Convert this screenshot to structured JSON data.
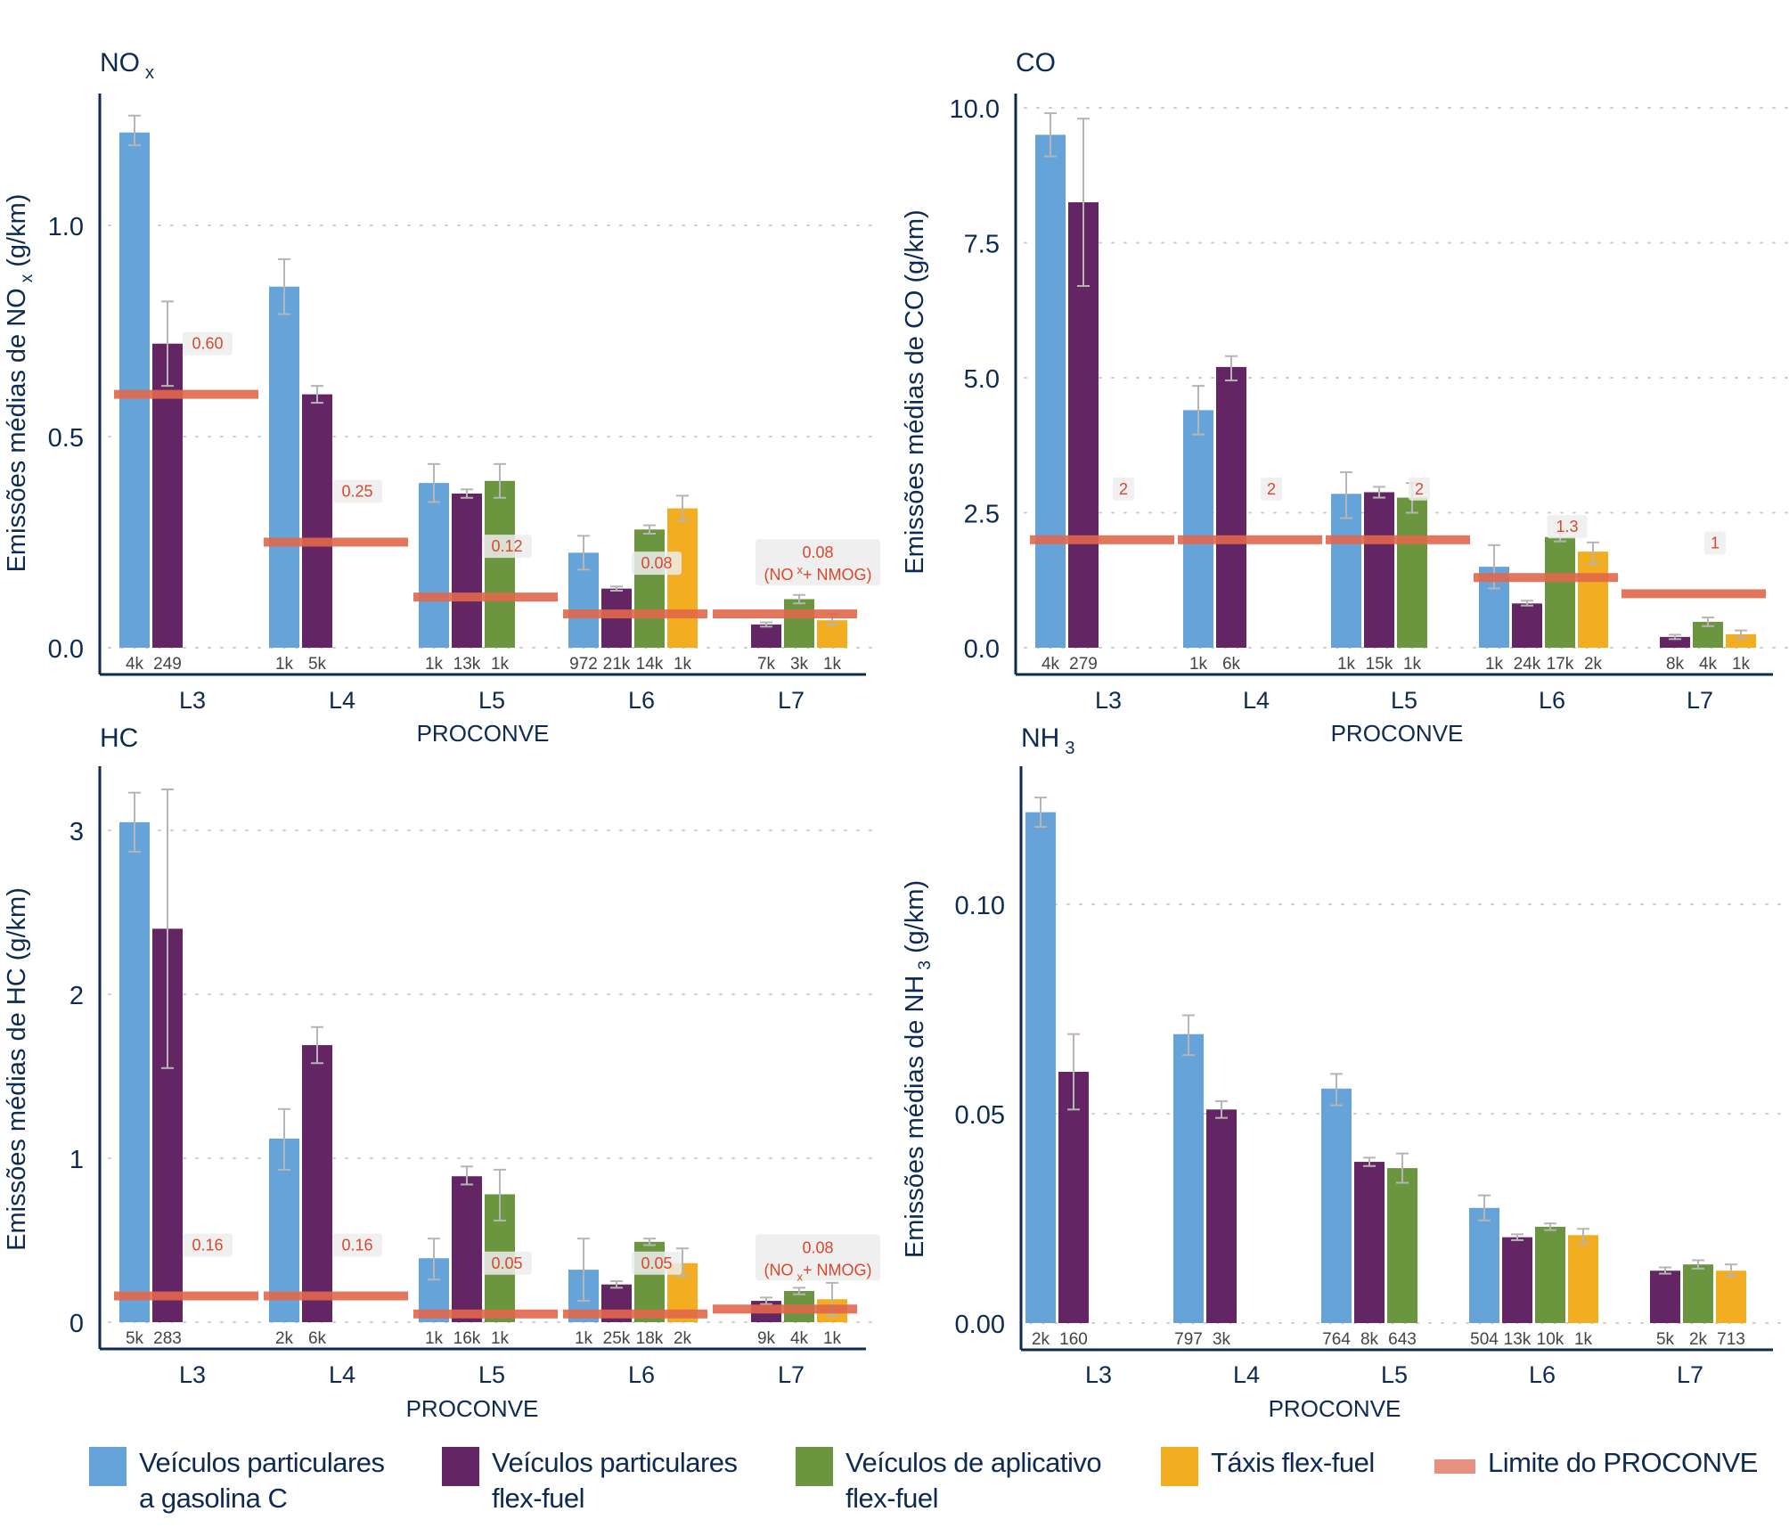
{
  "legend": {
    "items": [
      {
        "key": "gasolina",
        "label": "Veículos particulares\na gasolina C",
        "color": "#66a3d9"
      },
      {
        "key": "flex",
        "label": "Veículos particulares\nflex-fuel",
        "color": "#632563"
      },
      {
        "key": "app",
        "label": "Veículos de aplicativo\nflex-fuel",
        "color": "#6b953f"
      },
      {
        "key": "taxi",
        "label": "Táxis flex-fuel",
        "color": "#f2ae20"
      },
      {
        "key": "limit",
        "label": "Limite do PROCONVE",
        "color": "#e0674a",
        "type": "line"
      }
    ]
  },
  "colors": {
    "axis": "#0d2b52",
    "grid": "#cccccc",
    "error_bar": "#b5b5b5",
    "limit_line": "#e0674a",
    "limit_text": "#d9482b",
    "limit_box": "#ededed",
    "count_text": "#444444"
  },
  "chart_data": [
    {
      "id": "nox",
      "type": "bar",
      "title": "NO",
      "title_sub": "x",
      "ylabel": "Emissões médias de NO",
      "ylabel_sub": "x",
      "ylabel_suffix": " (g/km)",
      "xlabel": "PROCONVE",
      "show_xlabel": true,
      "categories": [
        "L3",
        "L4",
        "L5",
        "L6",
        "L7"
      ],
      "yticks": [
        0.0,
        0.5,
        1.0
      ],
      "ytick_labels": [
        "0.0",
        "0.5",
        "1.0"
      ],
      "ylim": [
        0,
        1.3
      ],
      "grid": true,
      "groups": [
        {
          "category": "L3",
          "bars": [
            {
              "series": "gasolina",
              "value": 1.22,
              "err_low": 1.19,
              "err_high": 1.26,
              "n": "4k"
            },
            {
              "series": "flex",
              "value": 0.72,
              "err_low": 0.62,
              "err_high": 0.82,
              "n": "249"
            }
          ],
          "limit": 0.6,
          "limit_label": "0.60"
        },
        {
          "category": "L4",
          "bars": [
            {
              "series": "gasolina",
              "value": 0.855,
              "err_low": 0.79,
              "err_high": 0.92,
              "n": "1k"
            },
            {
              "series": "flex",
              "value": 0.6,
              "err_low": 0.58,
              "err_high": 0.62,
              "n": "5k"
            }
          ],
          "limit": 0.25,
          "limit_label": "0.25"
        },
        {
          "category": "L5",
          "bars": [
            {
              "series": "gasolina",
              "value": 0.39,
              "err_low": 0.345,
              "err_high": 0.435,
              "n": "1k"
            },
            {
              "series": "flex",
              "value": 0.365,
              "err_low": 0.355,
              "err_high": 0.375,
              "n": "13k"
            },
            {
              "series": "app",
              "value": 0.395,
              "err_low": 0.355,
              "err_high": 0.435,
              "n": "1k"
            }
          ],
          "limit": 0.12,
          "limit_label": "0.12"
        },
        {
          "category": "L6",
          "bars": [
            {
              "series": "gasolina",
              "value": 0.225,
              "err_low": 0.185,
              "err_high": 0.265,
              "n": "972"
            },
            {
              "series": "flex",
              "value": 0.14,
              "err_low": 0.135,
              "err_high": 0.145,
              "n": "21k"
            },
            {
              "series": "app",
              "value": 0.28,
              "err_low": 0.27,
              "err_high": 0.29,
              "n": "14k"
            },
            {
              "series": "taxi",
              "value": 0.33,
              "err_low": 0.3,
              "err_high": 0.36,
              "n": "1k"
            }
          ],
          "limit": 0.08,
          "limit_label": "0.08"
        },
        {
          "category": "L7",
          "bars": [
            {
              "series": "flex",
              "value": 0.055,
              "err_low": 0.05,
              "err_high": 0.06,
              "n": "7k"
            },
            {
              "series": "app",
              "value": 0.115,
              "err_low": 0.105,
              "err_high": 0.125,
              "n": "3k"
            },
            {
              "series": "taxi",
              "value": 0.065,
              "err_low": 0.055,
              "err_high": 0.08,
              "n": "1k"
            }
          ],
          "limit": 0.08,
          "limit_label": "0.08",
          "limit_note": "(NO",
          "limit_note_sup": "x",
          "limit_note_rest": "+ NMOG)"
        }
      ]
    },
    {
      "id": "co",
      "type": "bar",
      "title": "CO",
      "title_sub": "",
      "ylabel": "Emissões médias de CO (g/km)",
      "ylabel_sub": "",
      "ylabel_suffix": "",
      "xlabel": "PROCONVE",
      "show_xlabel": true,
      "categories": [
        "L3",
        "L4",
        "L5",
        "L6",
        "L7"
      ],
      "yticks": [
        0.0,
        2.5,
        5.0,
        7.5,
        10.0
      ],
      "ytick_labels": [
        "0.0",
        "2.5",
        "5.0",
        "7.5",
        "10.0"
      ],
      "ylim": [
        0,
        10.5
      ],
      "grid": true,
      "groups": [
        {
          "category": "L3",
          "bars": [
            {
              "series": "gasolina",
              "value": 9.5,
              "err_low": 9.1,
              "err_high": 9.9,
              "n": "4k"
            },
            {
              "series": "flex",
              "value": 8.25,
              "err_low": 6.7,
              "err_high": 9.8,
              "n": "279"
            }
          ],
          "limit": 2,
          "limit_label": "2"
        },
        {
          "category": "L4",
          "bars": [
            {
              "series": "gasolina",
              "value": 4.4,
              "err_low": 3.95,
              "err_high": 4.85,
              "n": "1k"
            },
            {
              "series": "flex",
              "value": 5.2,
              "err_low": 4.95,
              "err_high": 5.4,
              "n": "6k"
            }
          ],
          "limit": 2,
          "limit_label": "2"
        },
        {
          "category": "L5",
          "bars": [
            {
              "series": "gasolina",
              "value": 2.85,
              "err_low": 2.4,
              "err_high": 3.25,
              "n": "1k"
            },
            {
              "series": "flex",
              "value": 2.88,
              "err_low": 2.78,
              "err_high": 2.98,
              "n": "15k"
            },
            {
              "series": "app",
              "value": 2.78,
              "err_low": 2.5,
              "err_high": 3.05,
              "n": "1k"
            }
          ],
          "limit": 2,
          "limit_label": "2"
        },
        {
          "category": "L6",
          "bars": [
            {
              "series": "gasolina",
              "value": 1.5,
              "err_low": 1.1,
              "err_high": 1.9,
              "n": "1k"
            },
            {
              "series": "flex",
              "value": 0.82,
              "err_low": 0.78,
              "err_high": 0.87,
              "n": "24k"
            },
            {
              "series": "app",
              "value": 2.05,
              "err_low": 1.97,
              "err_high": 2.13,
              "n": "17k"
            },
            {
              "series": "taxi",
              "value": 1.78,
              "err_low": 1.55,
              "err_high": 1.95,
              "n": "2k"
            }
          ],
          "limit": 1.3,
          "limit_label": "1.3"
        },
        {
          "category": "L7",
          "bars": [
            {
              "series": "flex",
              "value": 0.2,
              "err_low": 0.16,
              "err_high": 0.24,
              "n": "8k"
            },
            {
              "series": "app",
              "value": 0.48,
              "err_low": 0.4,
              "err_high": 0.56,
              "n": "4k"
            },
            {
              "series": "taxi",
              "value": 0.25,
              "err_low": 0.18,
              "err_high": 0.32,
              "n": "1k"
            }
          ],
          "limit": 1,
          "limit_label": "1"
        }
      ]
    },
    {
      "id": "hc",
      "type": "bar",
      "title": "HC",
      "title_sub": "",
      "ylabel": "Emissões médias de HC (g/km)",
      "ylabel_sub": "",
      "ylabel_suffix": "",
      "xlabel": "PROCONVE",
      "show_xlabel": true,
      "categories": [
        "L3",
        "L4",
        "L5",
        "L6",
        "L7"
      ],
      "yticks": [
        0,
        1,
        2,
        3
      ],
      "ytick_labels": [
        "0",
        "1",
        "2",
        "3"
      ],
      "ylim": [
        0,
        3.35
      ],
      "grid": true,
      "groups": [
        {
          "category": "L3",
          "bars": [
            {
              "series": "gasolina",
              "value": 3.05,
              "err_low": 2.87,
              "err_high": 3.23,
              "n": "5k"
            },
            {
              "series": "flex",
              "value": 2.4,
              "err_low": 1.55,
              "err_high": 3.25,
              "n": "283"
            }
          ],
          "limit": 0.16,
          "limit_label": "0.16"
        },
        {
          "category": "L4",
          "bars": [
            {
              "series": "gasolina",
              "value": 1.12,
              "err_low": 0.93,
              "err_high": 1.3,
              "n": "2k"
            },
            {
              "series": "flex",
              "value": 1.69,
              "err_low": 1.58,
              "err_high": 1.8,
              "n": "6k"
            }
          ],
          "limit": 0.16,
          "limit_label": "0.16"
        },
        {
          "category": "L5",
          "bars": [
            {
              "series": "gasolina",
              "value": 0.39,
              "err_low": 0.26,
              "err_high": 0.51,
              "n": "1k"
            },
            {
              "series": "flex",
              "value": 0.89,
              "err_low": 0.84,
              "err_high": 0.95,
              "n": "16k"
            },
            {
              "series": "app",
              "value": 0.78,
              "err_low": 0.62,
              "err_high": 0.93,
              "n": "1k"
            }
          ],
          "limit": 0.05,
          "limit_label": "0.05"
        },
        {
          "category": "L6",
          "bars": [
            {
              "series": "gasolina",
              "value": 0.32,
              "err_low": 0.13,
              "err_high": 0.51,
              "n": "1k"
            },
            {
              "series": "flex",
              "value": 0.23,
              "err_low": 0.21,
              "err_high": 0.25,
              "n": "25k"
            },
            {
              "series": "app",
              "value": 0.49,
              "err_low": 0.47,
              "err_high": 0.51,
              "n": "18k"
            },
            {
              "series": "taxi",
              "value": 0.36,
              "err_low": 0.28,
              "err_high": 0.45,
              "n": "2k"
            }
          ],
          "limit": 0.05,
          "limit_label": "0.05"
        },
        {
          "category": "L7",
          "bars": [
            {
              "series": "flex",
              "value": 0.13,
              "err_low": 0.11,
              "err_high": 0.15,
              "n": "9k"
            },
            {
              "series": "app",
              "value": 0.19,
              "err_low": 0.17,
              "err_high": 0.21,
              "n": "4k"
            },
            {
              "series": "taxi",
              "value": 0.14,
              "err_low": 0.04,
              "err_high": 0.24,
              "n": "1k"
            }
          ],
          "limit": 0.08,
          "limit_label": "0.08",
          "limit_note": "(NO",
          "limit_note_sub": "x",
          "limit_note_rest": "+ NMOG)"
        }
      ]
    },
    {
      "id": "nh3",
      "type": "bar",
      "title": "NH",
      "title_sub": "3",
      "ylabel": "Emissões médias de NH",
      "ylabel_sub": "3",
      "ylabel_suffix": " (g/km)",
      "xlabel": "PROCONVE",
      "show_xlabel": true,
      "categories": [
        "L3",
        "L4",
        "L5",
        "L6",
        "L7"
      ],
      "yticks": [
        0.0,
        0.05,
        0.1
      ],
      "ytick_labels": [
        "0.00",
        "0.05",
        "0.10"
      ],
      "ylim": [
        0,
        0.13
      ],
      "grid": true,
      "groups": [
        {
          "category": "L3",
          "bars": [
            {
              "series": "gasolina",
              "value": 0.122,
              "err_low": 0.1185,
              "err_high": 0.1255,
              "n": "2k"
            },
            {
              "series": "flex",
              "value": 0.06,
              "err_low": 0.051,
              "err_high": 0.069,
              "n": "160"
            }
          ]
        },
        {
          "category": "L4",
          "bars": [
            {
              "series": "gasolina",
              "value": 0.069,
              "err_low": 0.064,
              "err_high": 0.0735,
              "n": "797"
            },
            {
              "series": "flex",
              "value": 0.051,
              "err_low": 0.049,
              "err_high": 0.053,
              "n": "3k"
            }
          ]
        },
        {
          "category": "L5",
          "bars": [
            {
              "series": "gasolina",
              "value": 0.056,
              "err_low": 0.052,
              "err_high": 0.0595,
              "n": "764"
            },
            {
              "series": "flex",
              "value": 0.0385,
              "err_low": 0.0375,
              "err_high": 0.0395,
              "n": "8k"
            },
            {
              "series": "app",
              "value": 0.037,
              "err_low": 0.0335,
              "err_high": 0.0405,
              "n": "643"
            }
          ]
        },
        {
          "category": "L6",
          "bars": [
            {
              "series": "gasolina",
              "value": 0.0275,
              "err_low": 0.0245,
              "err_high": 0.0305,
              "n": "504"
            },
            {
              "series": "flex",
              "value": 0.0205,
              "err_low": 0.0198,
              "err_high": 0.0212,
              "n": "13k"
            },
            {
              "series": "app",
              "value": 0.023,
              "err_low": 0.0222,
              "err_high": 0.0238,
              "n": "10k"
            },
            {
              "series": "taxi",
              "value": 0.021,
              "err_low": 0.019,
              "err_high": 0.0225,
              "n": "1k"
            }
          ]
        },
        {
          "category": "L7",
          "bars": [
            {
              "series": "flex",
              "value": 0.0125,
              "err_low": 0.0118,
              "err_high": 0.0133,
              "n": "5k"
            },
            {
              "series": "app",
              "value": 0.014,
              "err_low": 0.013,
              "err_high": 0.015,
              "n": "2k"
            },
            {
              "series": "taxi",
              "value": 0.0125,
              "err_low": 0.0112,
              "err_high": 0.014,
              "n": "713"
            }
          ]
        }
      ]
    }
  ]
}
